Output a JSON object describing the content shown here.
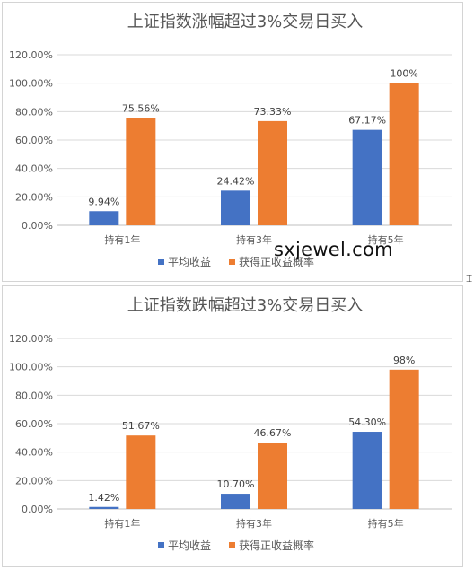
{
  "watermark": "sxjewel.com",
  "colors": {
    "series1": "#4472C4",
    "series2": "#ED7D31",
    "grid": "#d9d9d9",
    "axis": "#bfbfbf"
  },
  "chart_data": [
    {
      "type": "bar",
      "title": "上证指数涨幅超过3%交易日买入",
      "categories": [
        "持有1年",
        "持有3年",
        "持有5年"
      ],
      "ylim": [
        0,
        120
      ],
      "yticks": [
        "0.00%",
        "20.00%",
        "40.00%",
        "60.00%",
        "80.00%",
        "100.00%",
        "120.00%"
      ],
      "grid": true,
      "legend": "bottom",
      "series": [
        {
          "name": "平均收益",
          "values": [
            9.94,
            24.42,
            67.17
          ],
          "labels": [
            "9.94%",
            "24.42%",
            "67.17%"
          ]
        },
        {
          "name": "获得正收益概率",
          "values": [
            75.56,
            73.33,
            100
          ],
          "labels": [
            "75.56%",
            "73.33%",
            "100%"
          ]
        }
      ]
    },
    {
      "type": "bar",
      "title": "上证指数跌幅超过3%交易日买入",
      "categories": [
        "持有1年",
        "持有3年",
        "持有5年"
      ],
      "ylim": [
        0,
        120
      ],
      "yticks": [
        "0.00%",
        "20.00%",
        "40.00%",
        "60.00%",
        "80.00%",
        "100.00%",
        "120.00%"
      ],
      "grid": true,
      "legend": "bottom",
      "series": [
        {
          "name": "平均收益",
          "values": [
            1.42,
            10.7,
            54.3
          ],
          "labels": [
            "1.42%",
            "10.70%",
            "54.30%"
          ]
        },
        {
          "name": "获得正收益概率",
          "values": [
            51.67,
            46.67,
            98
          ],
          "labels": [
            "51.67%",
            "46.67%",
            "98%"
          ]
        }
      ]
    }
  ]
}
